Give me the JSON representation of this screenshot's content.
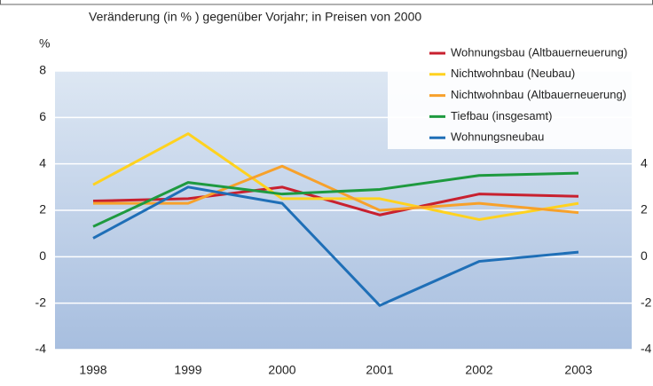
{
  "chart_data": {
    "type": "line",
    "title": "Veränderung (in % ) gegenüber Vorjahr; in Preisen von 2000",
    "y_label": "%",
    "categories": [
      "1998",
      "1999",
      "2000",
      "2001",
      "2002",
      "2003"
    ],
    "series": [
      {
        "name": "Wohnungsbau (Altbauerneuerung)",
        "color": "#c8202f",
        "values": [
          2.4,
          2.5,
          3.0,
          1.8,
          2.7,
          2.6
        ]
      },
      {
        "name": "Nichtwohnbau (Neubau)",
        "color": "#ffd21f",
        "values": [
          3.1,
          5.3,
          2.5,
          2.5,
          1.6,
          2.3
        ]
      },
      {
        "name": "Nichtwohnbau (Altbauerneuerung)",
        "color": "#f7a12b",
        "values": [
          2.3,
          2.3,
          3.9,
          2.0,
          2.3,
          1.9
        ]
      },
      {
        "name": "Tiefbau (insgesamt)",
        "color": "#1e9a3f",
        "values": [
          1.3,
          3.2,
          2.7,
          2.9,
          3.5,
          3.6
        ]
      },
      {
        "name": "Wohnungsneubau",
        "color": "#1f6fb7",
        "values": [
          0.8,
          3.0,
          2.3,
          -2.1,
          -0.2,
          0.2
        ]
      }
    ],
    "ylim": [
      -4,
      8
    ],
    "yticks": [
      -4,
      -2,
      0,
      2,
      4,
      6,
      8
    ],
    "y2lim": [
      -4,
      8
    ],
    "y2ticks": [
      -4,
      -2,
      0,
      2,
      4
    ],
    "grid": true,
    "legend": "upper right"
  }
}
